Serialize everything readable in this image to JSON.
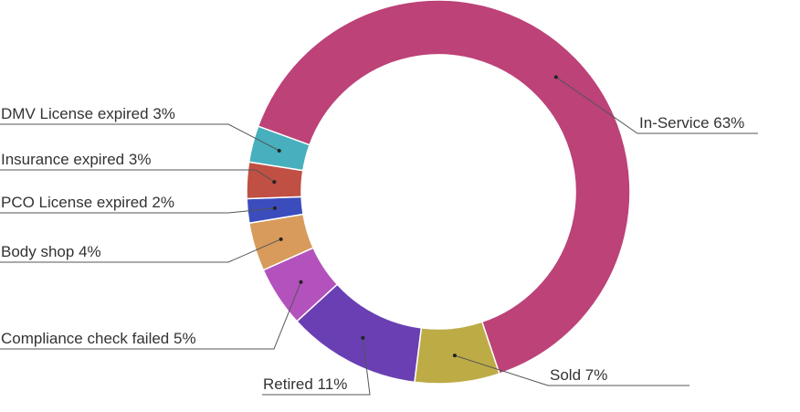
{
  "chart_data": {
    "type": "donut",
    "categories": [
      "In-Service",
      "Sold",
      "Retired",
      "Compliance check failed",
      "Body shop",
      "PCO License expired",
      "Insurance expired",
      "DMV License expired"
    ],
    "values": [
      63,
      7,
      11,
      5,
      4,
      2,
      3,
      3
    ],
    "value_labels": [
      "63%",
      "7%",
      "11%",
      "5%",
      "4%",
      "2%",
      "3%",
      "3%"
    ],
    "colors": [
      "#bc4278",
      "#bdab45",
      "#6a3fb3",
      "#b352bd",
      "#d89b5c",
      "#3b4dbd",
      "#c04f44",
      "#47afbd"
    ]
  }
}
